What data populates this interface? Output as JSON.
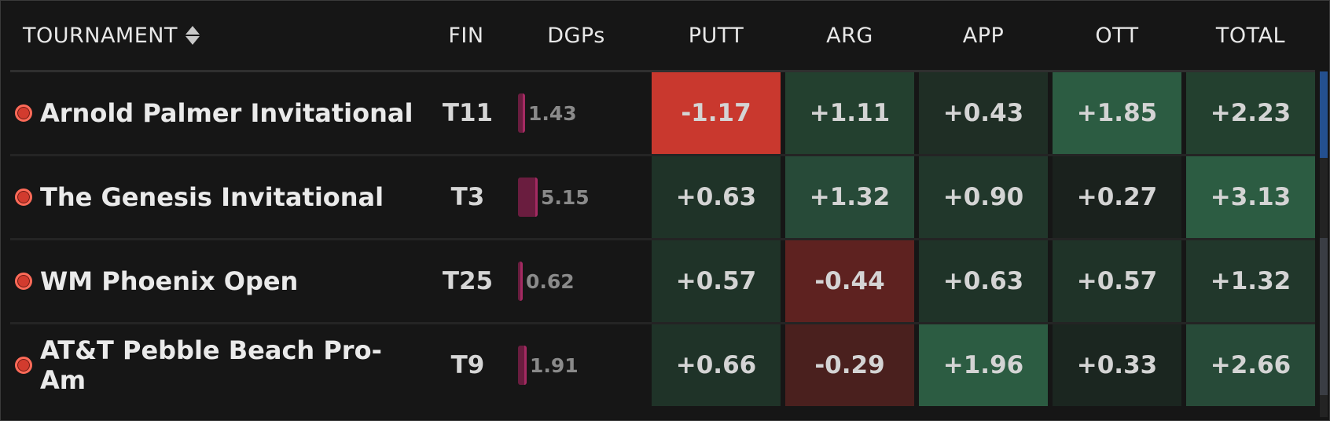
{
  "header": {
    "tournament": "TOURNAMENT",
    "fin": "FIN",
    "dgps": "DGPs",
    "putt": "PUTT",
    "arg": "ARG",
    "app": "APP",
    "ott": "OTT",
    "total": "TOTAL"
  },
  "colors": {
    "strong_red": "#c9382e",
    "red": "#5e2220",
    "dark_red": "#4a201e",
    "strong_green": "#2c5c42",
    "green": "#274a38",
    "mid_green": "#23402f",
    "dark_green": "#1f3328",
    "faint_green": "#1b2620",
    "accent_pink": "#a42a62",
    "status_dot": "#d23b2e"
  },
  "rows": [
    {
      "name": "Arnold Palmer Invitational",
      "fin": "T11",
      "dgps": "1.43",
      "dgps_value": 1.43,
      "putt": "-1.17",
      "putt_color": "#c9382e",
      "arg": "+1.11",
      "arg_color": "#23402f",
      "app": "+0.43",
      "app_color": "#1f2e25",
      "ott": "+1.85",
      "ott_color": "#2c5c42",
      "total": "+2.23",
      "total_color": "#23402f"
    },
    {
      "name": "The Genesis Invitational",
      "fin": "T3",
      "dgps": "5.15",
      "dgps_value": 5.15,
      "putt": "+0.63",
      "putt_color": "#1f3328",
      "arg": "+1.32",
      "arg_color": "#274a38",
      "app": "+0.90",
      "app_color": "#21372b",
      "ott": "+0.27",
      "ott_color": "#1a211d",
      "total": "+3.13",
      "total_color": "#2c5c42"
    },
    {
      "name": "WM Phoenix Open",
      "fin": "T25",
      "dgps": "0.62",
      "dgps_value": 0.62,
      "putt": "+0.57",
      "putt_color": "#1f3328",
      "arg": "-0.44",
      "arg_color": "#5e2220",
      "app": "+0.63",
      "app_color": "#1f3328",
      "ott": "+0.57",
      "ott_color": "#1f3328",
      "total": "+1.32",
      "total_color": "#21372b"
    },
    {
      "name": "AT&T Pebble Beach Pro-Am",
      "fin": "T9",
      "dgps": "1.91",
      "dgps_value": 1.91,
      "putt": "+0.66",
      "putt_color": "#1f3328",
      "arg": "-0.29",
      "arg_color": "#4a201e",
      "app": "+1.96",
      "app_color": "#2c5c42",
      "ott": "+0.33",
      "ott_color": "#1b2620",
      "total": "+2.66",
      "total_color": "#274a38"
    }
  ]
}
